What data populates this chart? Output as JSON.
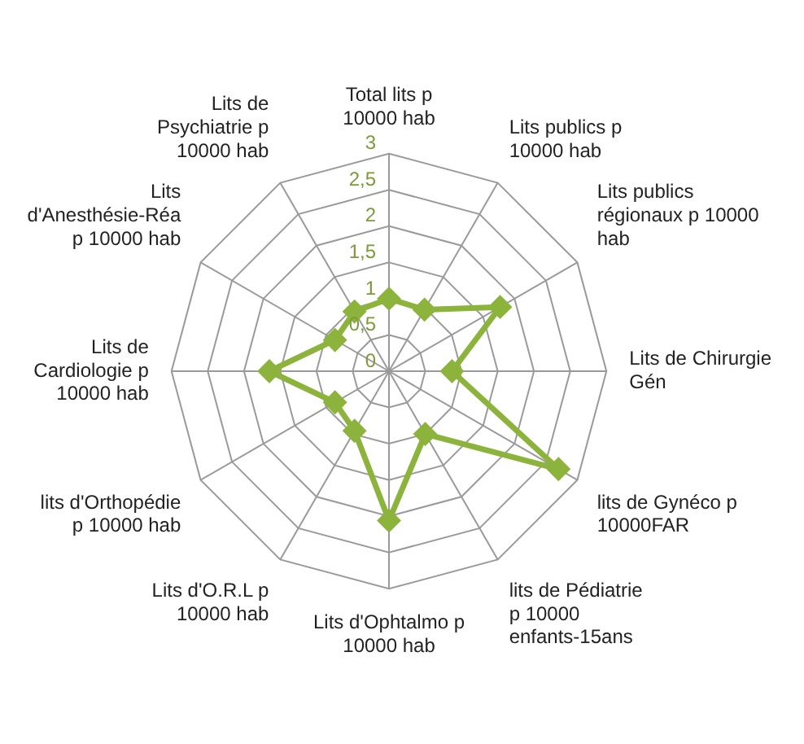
{
  "chart_data": {
    "type": "radar",
    "categories": [
      "Total lits p 10000 hab",
      "Lits publics p 10000 hab",
      "Lits publics régionaux p 10000 hab",
      "Lits de Chirurgie Gén",
      "lits de Gynéco p 10000FAR",
      "lits de Pédiatrie p 10000 enfants-15ans",
      "Lits d'Ophtalmo p 10000 hab",
      "Lits d'O.R.L p 10000 hab",
      "lits d'Orthopédie p 10000 hab",
      "Lits de Cardiologie p 10000 hab",
      "Lits d'Anesthésie-Réa p 10000 hab",
      "Lits de Psychiatrie p 10000 hab"
    ],
    "series": [
      {
        "color": "#8cb43c",
        "values": [
          1.0,
          0.98,
          1.77,
          0.87,
          2.7,
          1.0,
          2.06,
          0.95,
          0.86,
          1.65,
          0.86,
          0.95
        ]
      }
    ],
    "ylim": [
      0,
      3
    ],
    "yticks": [
      0,
      {
        "value": 0.5,
        "label": "0,5"
      },
      1,
      {
        "value": 1.5,
        "label": "1,5"
      },
      2,
      {
        "value": 2.5,
        "label": "2,5"
      },
      3
    ],
    "marker": "diamond",
    "legend": false
  }
}
